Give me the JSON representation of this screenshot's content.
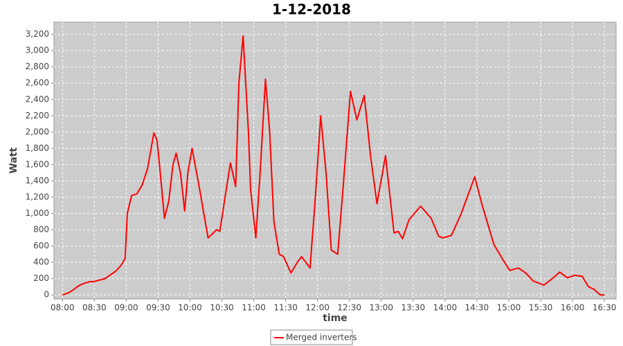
{
  "chart_data": {
    "type": "line",
    "title": "1-12-2018",
    "x_label": "time",
    "y_label": "Watt",
    "x": [
      "08:00",
      "08:05",
      "08:10",
      "08:15",
      "08:20",
      "08:25",
      "08:30",
      "08:40",
      "08:50",
      "08:55",
      "08:59",
      "09:01",
      "09:05",
      "09:10",
      "09:15",
      "09:20",
      "09:26",
      "09:29",
      "09:32",
      "09:36",
      "09:40",
      "09:44",
      "09:47",
      "09:51",
      "09:55",
      "09:58",
      "10:02",
      "10:09",
      "10:17",
      "10:25",
      "10:28",
      "10:38",
      "10:43",
      "10:46",
      "10:50",
      "10:55",
      "10:57",
      "11:02",
      "11:06",
      "11:11",
      "11:15",
      "11:19",
      "11:24",
      "11:28",
      "11:35",
      "11:41",
      "11:45",
      "11:53",
      "11:58",
      "12:03",
      "12:08",
      "12:13",
      "12:19",
      "12:24",
      "12:31",
      "12:37",
      "12:44",
      "12:50",
      "12:56",
      "13:04",
      "13:12",
      "13:16",
      "13:20",
      "13:26",
      "13:37",
      "13:47",
      "13:54",
      "13:58",
      "14:06",
      "14:15",
      "14:28",
      "14:35",
      "14:46",
      "14:55",
      "15:01",
      "15:09",
      "15:16",
      "15:23",
      "15:33",
      "15:41",
      "15:48",
      "15:55",
      "16:02",
      "16:09",
      "16:15",
      "16:20",
      "16:26",
      "16:30"
    ],
    "series": [
      {
        "name": "Merged inverters",
        "color": "#ff0000",
        "values": [
          0,
          20,
          60,
          110,
          140,
          160,
          165,
          200,
          290,
          360,
          450,
          1000,
          1220,
          1240,
          1350,
          1550,
          1990,
          1900,
          1500,
          940,
          1150,
          1600,
          1740,
          1500,
          1030,
          1500,
          1800,
          1300,
          700,
          800,
          780,
          1620,
          1330,
          2600,
          3180,
          2000,
          1300,
          700,
          1500,
          2650,
          2000,
          900,
          500,
          470,
          270,
          400,
          470,
          330,
          1200,
          2200,
          1500,
          550,
          500,
          1300,
          2500,
          2150,
          2450,
          1700,
          1120,
          1710,
          760,
          780,
          690,
          920,
          1090,
          940,
          720,
          700,
          730,
          990,
          1450,
          1100,
          620,
          420,
          300,
          330,
          270,
          170,
          120,
          200,
          280,
          210,
          240,
          230,
          100,
          70,
          0,
          0
        ]
      }
    ],
    "xlim": [
      "07:52",
      "16:41"
    ],
    "xticks": [
      "08:00",
      "08:30",
      "09:00",
      "09:30",
      "10:00",
      "10:30",
      "11:00",
      "11:30",
      "12:00",
      "12:30",
      "13:00",
      "13:30",
      "14:00",
      "14:30",
      "15:00",
      "15:30",
      "16:00",
      "16:30"
    ],
    "ylim": [
      -50,
      3350
    ],
    "yticks": [
      0,
      200,
      400,
      600,
      800,
      {
        "value": 1000,
        "label": "1,000"
      },
      {
        "value": 1200,
        "label": "1,200"
      },
      {
        "value": 1400,
        "label": "1,400"
      },
      {
        "value": 1600,
        "label": "1,600"
      },
      {
        "value": 1800,
        "label": "1,800"
      },
      {
        "value": 2000,
        "label": "2,000"
      },
      {
        "value": 2200,
        "label": "2,200"
      },
      {
        "value": 2400,
        "label": "2,400"
      },
      {
        "value": 2600,
        "label": "2,600"
      },
      {
        "value": 2800,
        "label": "2,800"
      },
      {
        "value": 3000,
        "label": "3,000"
      },
      {
        "value": 3200,
        "label": "3,200"
      }
    ],
    "grid": true
  }
}
